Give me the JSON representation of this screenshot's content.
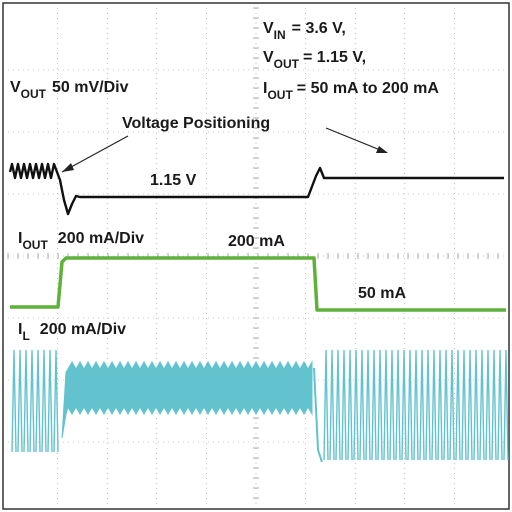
{
  "chart_data": {
    "type": "line",
    "title": "",
    "conditions": {
      "vin": {
        "symbol": "V",
        "sub": "IN",
        "text": "= 3.6 V,"
      },
      "vout": {
        "symbol": "V",
        "sub": "OUT",
        "text": "= 1.15 V,"
      },
      "iout": {
        "symbol": "I",
        "sub": "OUT",
        "text": "= 50 mA to 200 mA"
      }
    },
    "annotations": {
      "voltage_positioning": "Voltage Positioning",
      "vout_level": "1.15 V",
      "iout_high": "200 mA",
      "iout_low": "50 mA"
    },
    "traces": [
      {
        "id": "vout",
        "label": {
          "symbol": "V",
          "sub": "OUT",
          "scale": "50 mV/Div"
        },
        "color": "#111111",
        "description": "ripple, dip at load step-up, flat at 1.15 V under 200 mA load, ripple resumes at 50 mA"
      },
      {
        "id": "iout",
        "label": {
          "symbol": "I",
          "sub": "OUT",
          "scale": "200 mA/Div"
        },
        "color": "#5fb13a",
        "levels_mA": {
          "low": 50,
          "high": 200
        }
      },
      {
        "id": "il",
        "label": {
          "symbol": "I",
          "sub": "L",
          "scale": "200 mA/Div"
        },
        "color": "#62c3cf",
        "description": "dense switching (PFM) at light load, continuous ripple band at heavy load"
      }
    ],
    "grid": true,
    "grid_divisions": {
      "x": 10,
      "y": 8
    },
    "colors": {
      "grid": "#9a9a9a",
      "border": "#333333",
      "background": "#ffffff"
    }
  }
}
